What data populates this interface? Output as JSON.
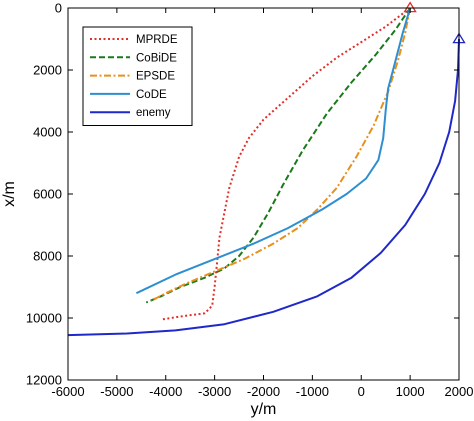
{
  "chart_data": {
    "type": "line",
    "title": "",
    "xlabel": "y/m",
    "ylabel": "x/m",
    "xlim": [
      -6000,
      2000
    ],
    "ylim": [
      0,
      12000
    ],
    "y_inverted": true,
    "grid": false,
    "legend_position": "top-left",
    "x_ticks": [
      "-6000",
      "-5000",
      "-4000",
      "-3000",
      "-2000",
      "-1000",
      "0",
      "1000",
      "2000"
    ],
    "y_ticks": [
      "0",
      "2000",
      "4000",
      "6000",
      "8000",
      "10000",
      "12000"
    ],
    "series": [
      {
        "name": "MPRDE",
        "color": "#e0302a",
        "dash": "2,2.5",
        "points": [
          [
            1000,
            0
          ],
          [
            500,
            600
          ],
          [
            0,
            1100
          ],
          [
            -500,
            1600
          ],
          [
            -1000,
            2200
          ],
          [
            -1500,
            2900
          ],
          [
            -2000,
            3600
          ],
          [
            -2300,
            4200
          ],
          [
            -2500,
            4800
          ],
          [
            -2700,
            5800
          ],
          [
            -2800,
            6600
          ],
          [
            -2900,
            7400
          ],
          [
            -2950,
            8200
          ],
          [
            -3000,
            9000
          ],
          [
            -3050,
            9600
          ],
          [
            -3200,
            9850
          ],
          [
            -3700,
            9950
          ],
          [
            -4100,
            10050
          ]
        ]
      },
      {
        "name": "CoBiDE",
        "color": "#1a7a1a",
        "dash": "6,3",
        "points": [
          [
            1000,
            0
          ],
          [
            700,
            700
          ],
          [
            300,
            1500
          ],
          [
            -200,
            2400
          ],
          [
            -700,
            3400
          ],
          [
            -1200,
            4600
          ],
          [
            -1600,
            5700
          ],
          [
            -1900,
            6600
          ],
          [
            -2200,
            7400
          ],
          [
            -2500,
            8000
          ],
          [
            -2800,
            8400
          ],
          [
            -3200,
            8700
          ],
          [
            -3700,
            9000
          ],
          [
            -4100,
            9300
          ],
          [
            -4400,
            9500
          ]
        ]
      },
      {
        "name": "EPSDE",
        "color": "#e8901e",
        "dash": "7,2.5,2,2.5",
        "points": [
          [
            1000,
            0
          ],
          [
            900,
            800
          ],
          [
            750,
            1700
          ],
          [
            550,
            2700
          ],
          [
            250,
            3800
          ],
          [
            -100,
            4800
          ],
          [
            -500,
            5800
          ],
          [
            -900,
            6500
          ],
          [
            -1300,
            7100
          ],
          [
            -1800,
            7600
          ],
          [
            -2400,
            8100
          ],
          [
            -3000,
            8500
          ],
          [
            -3600,
            8900
          ],
          [
            -4000,
            9200
          ],
          [
            -4300,
            9450
          ]
        ]
      },
      {
        "name": "CoDE",
        "color": "#2e8fd0",
        "dash": "",
        "points": [
          [
            1000,
            0
          ],
          [
            850,
            800
          ],
          [
            700,
            1700
          ],
          [
            550,
            2600
          ],
          [
            500,
            3300
          ],
          [
            450,
            4200
          ],
          [
            350,
            4900
          ],
          [
            100,
            5500
          ],
          [
            -300,
            6000
          ],
          [
            -800,
            6500
          ],
          [
            -1500,
            7100
          ],
          [
            -2200,
            7600
          ],
          [
            -3000,
            8100
          ],
          [
            -3800,
            8600
          ],
          [
            -4600,
            9200
          ]
        ]
      },
      {
        "name": "enemy",
        "color": "#1f28c8",
        "dash": "",
        "points": [
          [
            2000,
            1000
          ],
          [
            1980,
            2000
          ],
          [
            1920,
            3000
          ],
          [
            1800,
            4000
          ],
          [
            1600,
            5000
          ],
          [
            1300,
            6000
          ],
          [
            900,
            7000
          ],
          [
            400,
            7900
          ],
          [
            -200,
            8700
          ],
          [
            -900,
            9300
          ],
          [
            -1800,
            9800
          ],
          [
            -2800,
            10200
          ],
          [
            -3800,
            10400
          ],
          [
            -4800,
            10500
          ],
          [
            -6000,
            10550
          ]
        ]
      }
    ],
    "markers": [
      {
        "series": "MPRDE",
        "shape": "triangle",
        "x": 1000,
        "y": 0,
        "color": "#e0302a"
      },
      {
        "series": "enemy",
        "shape": "triangle",
        "x": 2000,
        "y": 1000,
        "color": "#1f28c8"
      }
    ]
  }
}
